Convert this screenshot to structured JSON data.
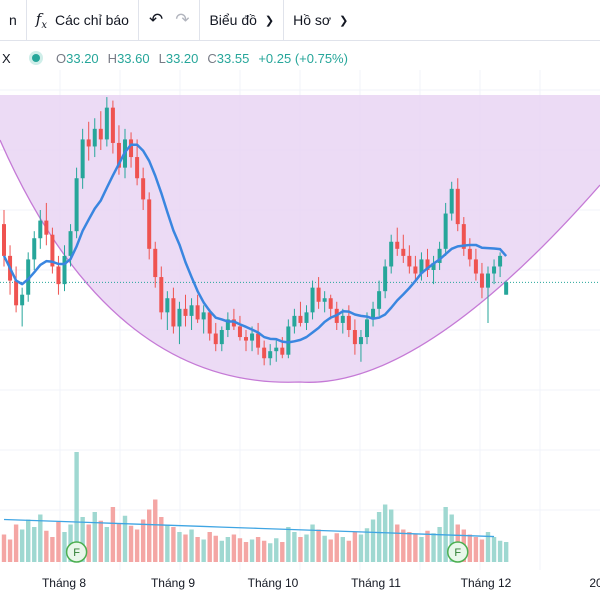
{
  "toolbar": {
    "left_partial": "n",
    "indicators_icon": "fx-icon",
    "indicators_label": "Các chỉ báo",
    "undo_icon": "undo-icon",
    "redo_icon": "redo-icon",
    "chart_type_label": "Biểu đồ",
    "profile_label": "Hồ sơ"
  },
  "legend": {
    "symbol": "X",
    "open_label": "O",
    "open": "33.20",
    "high_label": "H",
    "high": "33.60",
    "low_label": "L",
    "low": "33.20",
    "close_label": "C",
    "close": "33.55",
    "change": "+0.25 (+0.75%)"
  },
  "colors": {
    "up": "#26a69a",
    "down": "#ef5350",
    "ma": "#3a86e0",
    "cup_fill": "#e9d5f3",
    "cup_line": "#c57ad6",
    "volume_ma": "#3fa5e3"
  },
  "markers": [
    {
      "label": "F",
      "date_index": 12
    },
    {
      "label": "F",
      "date_index": 75
    }
  ],
  "x_axis": {
    "labels": [
      "Tháng 8",
      "Tháng 9",
      "Tháng 10",
      "Tháng 11",
      "Tháng 12",
      "20"
    ]
  },
  "chart_data": {
    "type": "candlestick",
    "series_note": "",
    "candles": [
      [
        35.2,
        35.6,
        34.0,
        34.3
      ],
      [
        34.3,
        34.6,
        33.2,
        33.6
      ],
      [
        33.6,
        34.0,
        32.7,
        32.9
      ],
      [
        32.9,
        33.4,
        32.3,
        33.2
      ],
      [
        33.2,
        34.4,
        33.0,
        34.2
      ],
      [
        34.2,
        35.0,
        33.9,
        34.8
      ],
      [
        34.8,
        35.6,
        34.5,
        35.3
      ],
      [
        35.3,
        35.8,
        34.6,
        34.9
      ],
      [
        34.9,
        35.1,
        33.8,
        34.0
      ],
      [
        34.0,
        34.3,
        33.2,
        33.5
      ],
      [
        33.5,
        34.6,
        33.3,
        34.3
      ],
      [
        34.3,
        35.2,
        34.0,
        35.0
      ],
      [
        35.0,
        36.8,
        34.8,
        36.5
      ],
      [
        36.5,
        37.9,
        36.2,
        37.6
      ],
      [
        37.6,
        38.1,
        37.0,
        37.4
      ],
      [
        37.4,
        38.2,
        37.1,
        37.9
      ],
      [
        37.9,
        38.4,
        37.3,
        37.6
      ],
      [
        37.6,
        38.8,
        37.4,
        38.5
      ],
      [
        38.5,
        38.7,
        37.2,
        37.5
      ],
      [
        37.5,
        38.0,
        36.6,
        36.8
      ],
      [
        36.8,
        37.9,
        36.5,
        37.6
      ],
      [
        37.6,
        37.8,
        36.8,
        37.1
      ],
      [
        37.1,
        37.6,
        36.3,
        36.5
      ],
      [
        36.5,
        36.8,
        35.6,
        35.9
      ],
      [
        35.9,
        36.1,
        34.2,
        34.5
      ],
      [
        34.5,
        34.7,
        33.4,
        33.7
      ],
      [
        33.7,
        34.0,
        32.5,
        32.7
      ],
      [
        32.7,
        33.3,
        32.2,
        33.1
      ],
      [
        33.1,
        33.4,
        32.1,
        32.3
      ],
      [
        32.3,
        33.0,
        31.8,
        32.8
      ],
      [
        32.8,
        33.2,
        32.3,
        32.6
      ],
      [
        32.6,
        33.1,
        32.2,
        32.9
      ],
      [
        32.9,
        33.2,
        32.4,
        32.5
      ],
      [
        32.5,
        32.9,
        32.1,
        32.7
      ],
      [
        32.7,
        32.8,
        31.9,
        32.1
      ],
      [
        32.1,
        32.4,
        31.6,
        31.8
      ],
      [
        31.8,
        32.3,
        31.6,
        32.2
      ],
      [
        32.2,
        32.7,
        32.0,
        32.5
      ],
      [
        32.5,
        32.8,
        32.2,
        32.3
      ],
      [
        32.3,
        32.6,
        31.9,
        32.0
      ],
      [
        32.0,
        32.2,
        31.6,
        31.9
      ],
      [
        31.9,
        32.3,
        31.6,
        32.1
      ],
      [
        32.1,
        32.4,
        31.5,
        31.7
      ],
      [
        31.7,
        31.9,
        31.2,
        31.4
      ],
      [
        31.4,
        31.8,
        31.2,
        31.6
      ],
      [
        31.6,
        31.9,
        31.3,
        31.7
      ],
      [
        31.7,
        32.0,
        31.4,
        31.5
      ],
      [
        31.5,
        32.5,
        31.4,
        32.3
      ],
      [
        32.3,
        32.8,
        32.1,
        32.6
      ],
      [
        32.6,
        33.0,
        32.3,
        32.4
      ],
      [
        32.4,
        32.9,
        32.2,
        32.7
      ],
      [
        32.7,
        33.6,
        32.5,
        33.4
      ],
      [
        33.4,
        33.7,
        32.8,
        33.0
      ],
      [
        33.0,
        33.3,
        32.7,
        33.1
      ],
      [
        33.1,
        33.2,
        32.5,
        32.8
      ],
      [
        32.8,
        33.0,
        32.2,
        32.4
      ],
      [
        32.4,
        32.8,
        32.1,
        32.6
      ],
      [
        32.6,
        32.9,
        32.0,
        32.2
      ],
      [
        32.2,
        32.5,
        31.5,
        31.8
      ],
      [
        31.8,
        32.2,
        31.3,
        32.0
      ],
      [
        32.0,
        32.7,
        31.8,
        32.5
      ],
      [
        32.5,
        33.0,
        32.3,
        32.8
      ],
      [
        32.8,
        33.6,
        32.6,
        33.3
      ],
      [
        33.3,
        34.2,
        33.1,
        34.0
      ],
      [
        34.0,
        34.9,
        33.8,
        34.7
      ],
      [
        34.7,
        35.1,
        34.3,
        34.5
      ],
      [
        34.5,
        34.9,
        34.1,
        34.3
      ],
      [
        34.3,
        34.6,
        33.8,
        34.0
      ],
      [
        34.0,
        34.3,
        33.6,
        33.8
      ],
      [
        33.8,
        34.4,
        33.6,
        34.2
      ],
      [
        34.2,
        34.5,
        33.7,
        33.9
      ],
      [
        33.9,
        34.3,
        33.5,
        34.1
      ],
      [
        34.1,
        34.7,
        33.9,
        34.5
      ],
      [
        34.5,
        35.8,
        34.3,
        35.5
      ],
      [
        35.5,
        36.4,
        35.3,
        36.2
      ],
      [
        36.2,
        36.5,
        35.0,
        35.2
      ],
      [
        35.2,
        35.4,
        34.3,
        34.5
      ],
      [
        34.5,
        34.8,
        34.0,
        34.2
      ],
      [
        34.2,
        34.5,
        33.6,
        33.8
      ],
      [
        33.8,
        34.1,
        33.1,
        33.4
      ],
      [
        33.4,
        34.0,
        32.4,
        33.8
      ],
      [
        33.8,
        34.2,
        33.5,
        34.0
      ],
      [
        34.0,
        34.4,
        33.7,
        34.3
      ],
      [
        33.2,
        33.6,
        33.2,
        33.55
      ]
    ],
    "ma_period": 10,
    "volume": [
      22,
      18,
      30,
      26,
      34,
      28,
      38,
      25,
      20,
      32,
      24,
      30,
      88,
      36,
      30,
      40,
      33,
      28,
      44,
      31,
      37,
      29,
      26,
      34,
      42,
      50,
      36,
      30,
      28,
      24,
      22,
      26,
      20,
      18,
      24,
      21,
      17,
      20,
      22,
      19,
      16,
      18,
      20,
      17,
      15,
      19,
      16,
      28,
      24,
      20,
      22,
      30,
      26,
      21,
      18,
      23,
      20,
      17,
      24,
      22,
      27,
      34,
      40,
      46,
      42,
      30,
      26,
      24,
      22,
      20,
      25,
      23,
      28,
      44,
      38,
      30,
      26,
      22,
      20,
      18,
      24,
      20,
      17,
      16
    ],
    "volume_ma_start": 34,
    "volume_ma_end": 20,
    "price_range": [
      30.5,
      39.0
    ],
    "last_price": 33.55,
    "x_labels": [
      "Tháng 8",
      "Tháng 9",
      "Tháng 10",
      "Tháng 11",
      "Tháng 12",
      "20"
    ]
  }
}
